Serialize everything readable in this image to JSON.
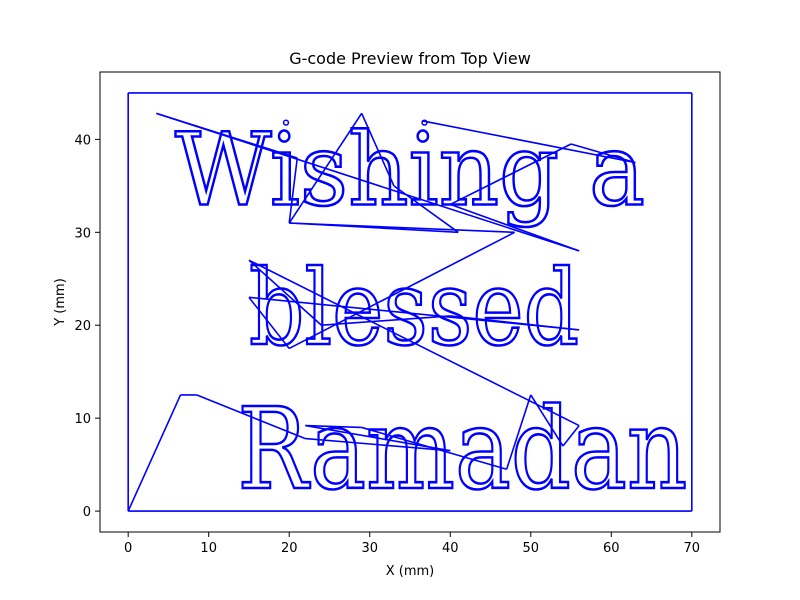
{
  "chart_data": {
    "type": "line",
    "title": "G-code Preview from Top View",
    "xlabel": "X (mm)",
    "ylabel": "Y (mm)",
    "xlim": [
      -3.5,
      73.5
    ],
    "ylim": [
      -2.25,
      47.25
    ],
    "x_ticks": [
      0,
      10,
      20,
      30,
      40,
      50,
      60,
      70
    ],
    "y_ticks": [
      0,
      10,
      20,
      30,
      40
    ],
    "grid": false,
    "color": "#0000ff",
    "text_lines": [
      "Wishing a",
      "blessed",
      "Ramadan"
    ],
    "series": [
      {
        "values_note": "",
        "points": [
          [
            0,
            0
          ],
          [
            70,
            0
          ],
          [
            70,
            45
          ],
          [
            0,
            45
          ],
          [
            0,
            0
          ],
          [
            6.5,
            12.5
          ],
          [
            8.5,
            12.5
          ],
          [
            22,
            7.8
          ],
          [
            40,
            6.5
          ],
          [
            22,
            9.2
          ],
          [
            29,
            9
          ],
          [
            47,
            4.5
          ],
          [
            50,
            12.5
          ],
          [
            54,
            7
          ],
          [
            56,
            9.2
          ],
          [
            15,
            27
          ],
          [
            24,
            20
          ],
          [
            40,
            21
          ],
          [
            56,
            19.5
          ],
          [
            15,
            23
          ],
          [
            20,
            17.5
          ],
          [
            48,
            30
          ],
          [
            20,
            31
          ],
          [
            41,
            30
          ],
          [
            33,
            35
          ],
          [
            29,
            42.8
          ],
          [
            20,
            31
          ],
          [
            21,
            38
          ],
          [
            3.5,
            42.8
          ],
          [
            56,
            28
          ],
          [
            40,
            33
          ],
          [
            55,
            39.5
          ],
          [
            63,
            37.5
          ],
          [
            36.5,
            42
          ]
        ]
      }
    ]
  }
}
